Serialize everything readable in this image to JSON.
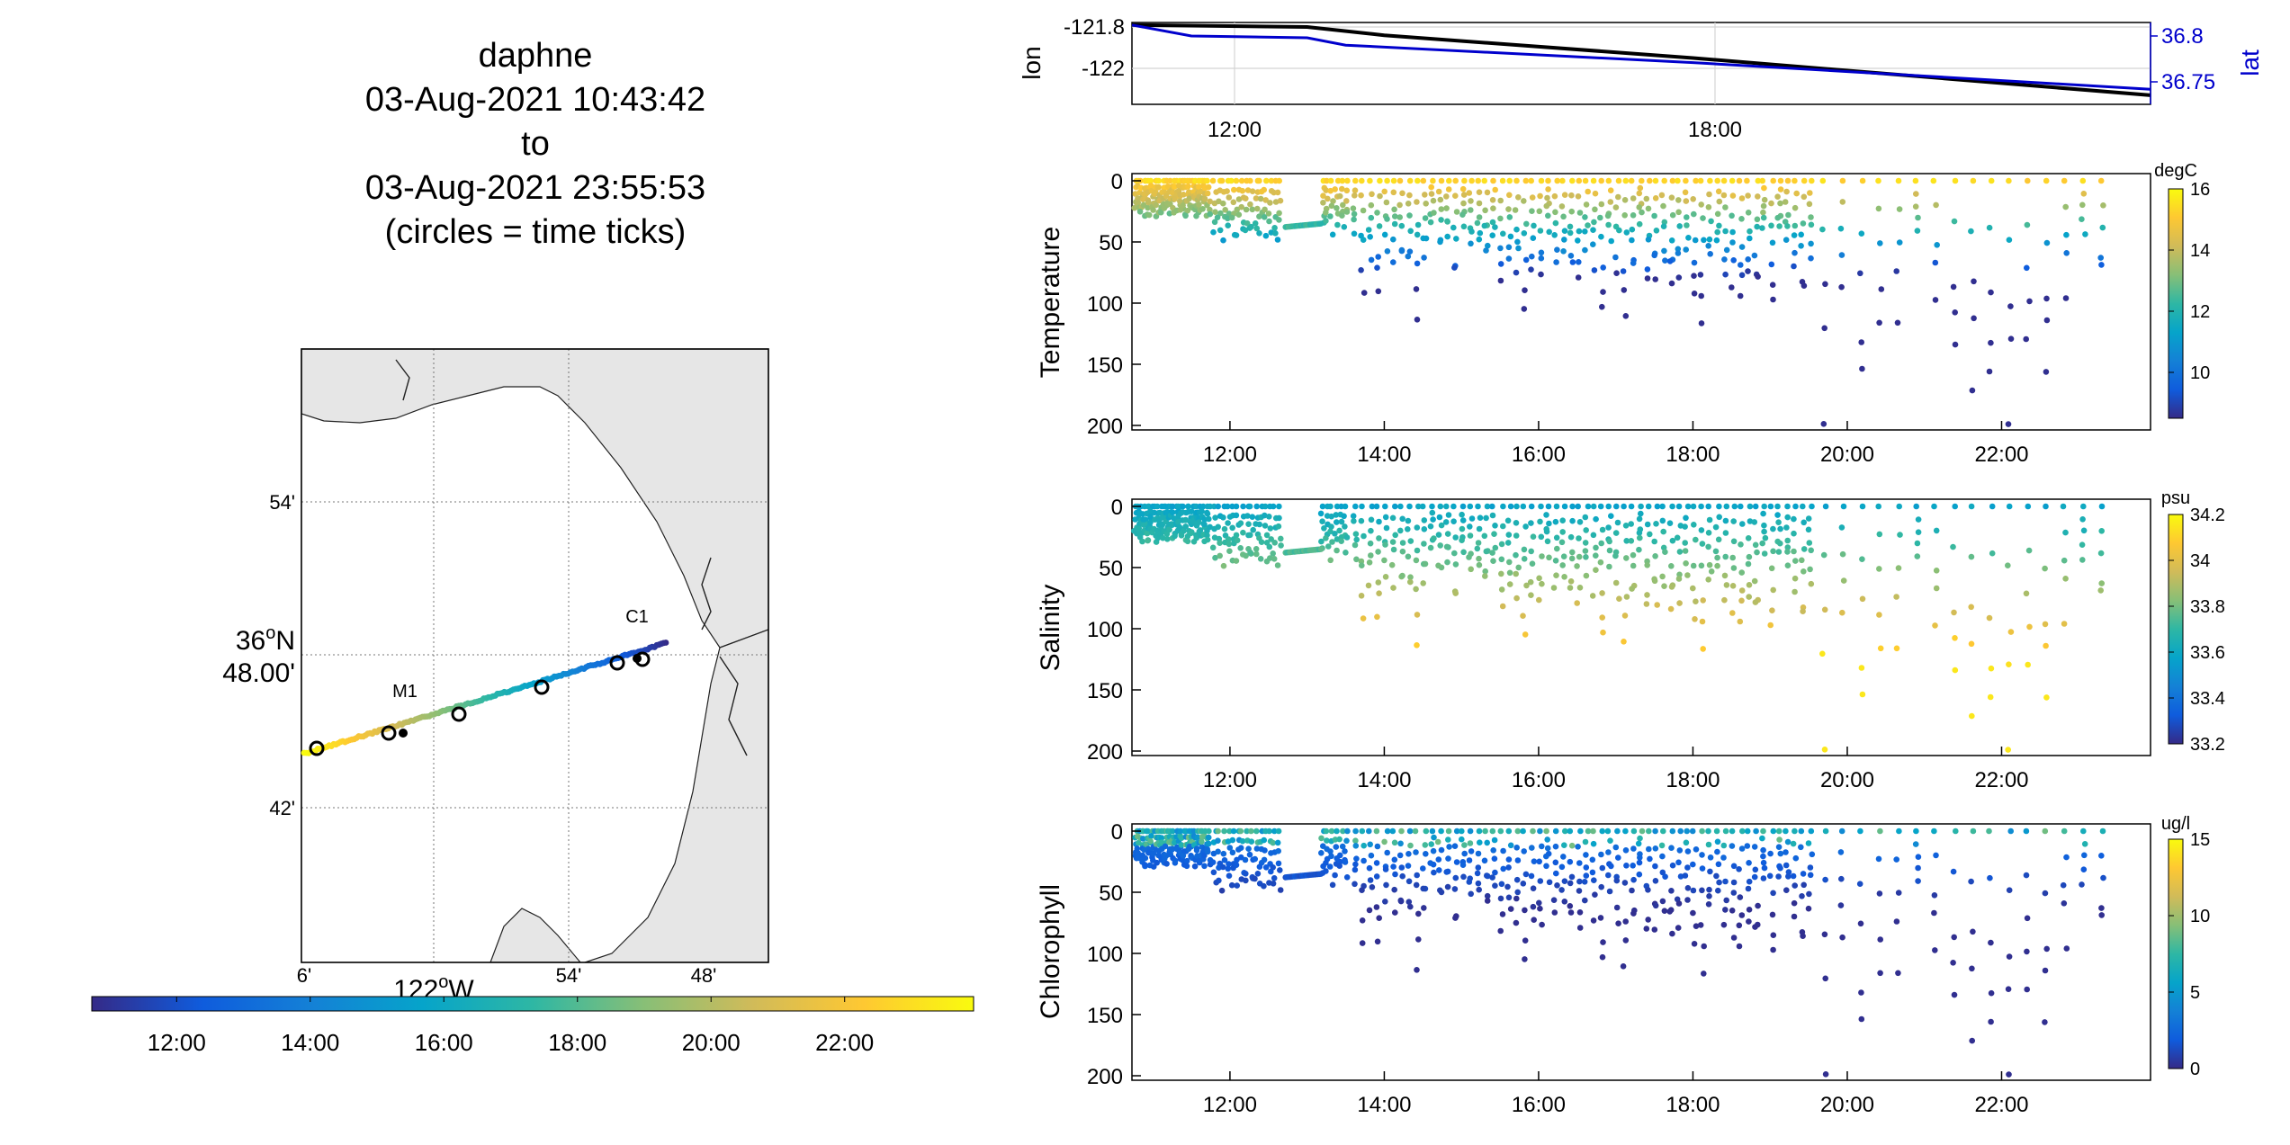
{
  "header": {
    "lines": [
      "daphne",
      "03-Aug-2021 10:43:42",
      "to",
      "03-Aug-2021 23:55:53",
      "(circles = time ticks)"
    ]
  },
  "map": {
    "lat_ticks": [
      "54'",
      "42'"
    ],
    "lat_center": [
      "36",
      "N",
      "48.00'"
    ],
    "lon_ticks": [
      "6'",
      "54'",
      "48'"
    ],
    "lon_center": [
      "122",
      "W"
    ],
    "stations": [
      "M1",
      "C1"
    ],
    "land_color": "#e6e6e6",
    "colorbar_ticks": [
      "12:00",
      "14:00",
      "16:00",
      "18:00",
      "20:00",
      "22:00"
    ]
  },
  "colors": {
    "lat_axis": "#0000cc",
    "lon_line": "#000000",
    "parula": [
      "#352a87",
      "#0f5cdd",
      "#1481d6",
      "#06a4ca",
      "#2eb7a4",
      "#87bf77",
      "#d1bb59",
      "#fec832",
      "#f9fb0e"
    ]
  },
  "chart_data": [
    {
      "type": "line",
      "name": "position",
      "x_ticks": [
        "12:00",
        "18:00"
      ],
      "ylabel_left": "lon",
      "ylabel_right": "lat",
      "yticks_left": [
        "-121.8",
        "-122"
      ],
      "yticks_right": [
        "36.8",
        "36.75"
      ],
      "grid": true,
      "series": [
        {
          "name": "lon",
          "x": [
            10.73,
            13.0,
            14.0,
            18.0,
            23.93
          ],
          "values": [
            -121.79,
            -121.8,
            -121.84,
            -121.95,
            -122.13
          ]
        },
        {
          "name": "lat",
          "x": [
            10.73,
            11.5,
            13.0,
            13.5,
            18.0,
            23.93
          ],
          "values": [
            36.812,
            36.8,
            36.798,
            36.79,
            36.771,
            36.742
          ]
        }
      ]
    },
    {
      "type": "scatter",
      "name": "temperature",
      "ylabel": "Temperature",
      "colorbar_label": "degC",
      "yticks": [
        "0",
        "50",
        "100",
        "150",
        "200"
      ],
      "x_ticks": [
        "12:00",
        "14:00",
        "16:00",
        "18:00",
        "20:00",
        "22:00"
      ],
      "colorbar_ticks": [
        "16",
        "14",
        "12",
        "10"
      ],
      "clim": [
        8.5,
        16
      ]
    },
    {
      "type": "scatter",
      "name": "salinity",
      "ylabel": "Salinity",
      "colorbar_label": "psu",
      "yticks": [
        "0",
        "50",
        "100",
        "150",
        "200"
      ],
      "x_ticks": [
        "12:00",
        "14:00",
        "16:00",
        "18:00",
        "20:00",
        "22:00"
      ],
      "colorbar_ticks": [
        "34.2",
        "34",
        "33.8",
        "33.6",
        "33.4",
        "33.2"
      ],
      "clim": [
        33.2,
        34.2
      ]
    },
    {
      "type": "scatter",
      "name": "chlorophyll",
      "ylabel": "Chlorophyll",
      "colorbar_label": "ug/l",
      "yticks": [
        "0",
        "50",
        "100",
        "150",
        "200"
      ],
      "x_ticks": [
        "12:00",
        "14:00",
        "16:00",
        "18:00",
        "20:00",
        "22:00"
      ],
      "colorbar_ticks": [
        "15",
        "10",
        "5",
        "0"
      ],
      "clim": [
        0,
        15
      ]
    }
  ]
}
